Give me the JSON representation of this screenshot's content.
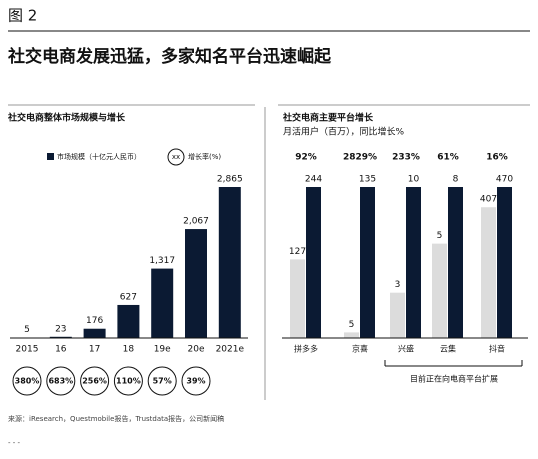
{
  "header": {
    "figure_label": "图 2",
    "title": "社交电商发展迅猛，多家知名平台迅速崛起"
  },
  "chart_data": [
    {
      "type": "bar",
      "title": "社交电商整体市场规模与增长",
      "categories": [
        "2015",
        "16",
        "17",
        "18",
        "19e",
        "20e",
        "2021e"
      ],
      "series": [
        {
          "name": "市场规模（十亿元人民币）",
          "color": "#0b1a33",
          "values": [
            5,
            23,
            176,
            627,
            1317,
            2067,
            2865
          ],
          "value_labels": [
            "5",
            "23",
            "176",
            "627",
            "1,317",
            "2,067",
            "2,865"
          ]
        }
      ],
      "growth": {
        "name": "增长率(%)",
        "marker": "xx",
        "values": [
          380,
          683,
          256,
          110,
          57,
          39
        ],
        "value_labels": [
          "380%",
          "683%",
          "256%",
          "110%",
          "57%",
          "39%"
        ]
      }
    },
    {
      "type": "grouped_bar",
      "title": "社交电商主要平台增长",
      "subtitle": "月活用户（百万），同比增长%",
      "categories": [
        "拼多多",
        "京喜",
        "兴盛",
        "云集",
        "抖音"
      ],
      "series": [
        {
          "color": "#dcdcdc",
          "values": [
            127,
            5,
            3,
            5,
            407
          ]
        },
        {
          "color": "#0b1a33",
          "values": [
            244,
            135,
            10,
            8,
            470
          ]
        }
      ],
      "growth": {
        "values": [
          92,
          2829,
          233,
          61,
          16
        ],
        "value_labels": [
          "92%",
          "2829%",
          "233%",
          "61%",
          "16%"
        ]
      },
      "annotation": "目前正在向电商平台扩展"
    }
  ],
  "source": "来源：iResearch，Questmobile报告，Trustdata报告，公司新闻稿"
}
